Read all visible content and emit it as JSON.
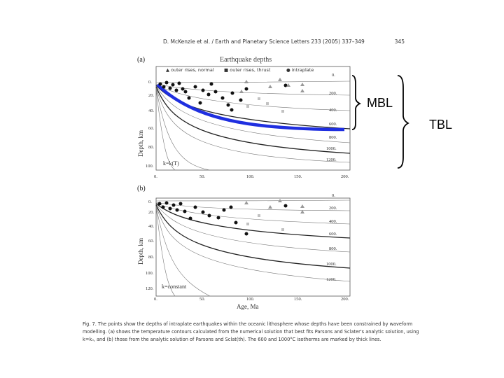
{
  "header": {
    "citation": "D. McKenzie et al. / Earth and Planetary Science Letters 233 (2005) 337–349",
    "page": "345"
  },
  "panels": [
    {
      "label": "(a)",
      "model": "k=k(T)"
    },
    {
      "label": "(b)",
      "model": "k=constant"
    }
  ],
  "plot_title": "Earthquake depths",
  "legend": [
    "outer rises, normal",
    "outer rises, thrust",
    "intraplate"
  ],
  "axes": {
    "ylabel": "Depth, km",
    "xlabel": "Age, Ma",
    "xticks": [
      "0.",
      "50.",
      "100.",
      "150.",
      "200."
    ],
    "yticks": [
      "0.",
      "20.",
      "40.",
      "60.",
      "80.",
      "100.",
      "120."
    ],
    "contour_labels": [
      "0.",
      "200.",
      "400.",
      "600.",
      "800.",
      "1000.",
      "1200."
    ]
  },
  "annotations": {
    "mbl": "MBL",
    "tbl": "TBL"
  },
  "caption": [
    "Fig. 7. The points show the depths of intraplate earthquakes within the oceanic lithosphere whose depths have been constrained by waveform",
    "modelling. (a) shows the temperature contours calculated from the numerical solution that best fits Parsons and Sclater's analytic solution, using",
    "k=k₀, and (b) those from the analytic solution of Parsons and Sclat(th). The 600 and 1000°C isotherms are marked by thick lines."
  ],
  "colors": {
    "highlight": "#1f2fe0",
    "quake": "#111111",
    "normal": "#999999",
    "thrust": "#c2c2c2"
  }
}
